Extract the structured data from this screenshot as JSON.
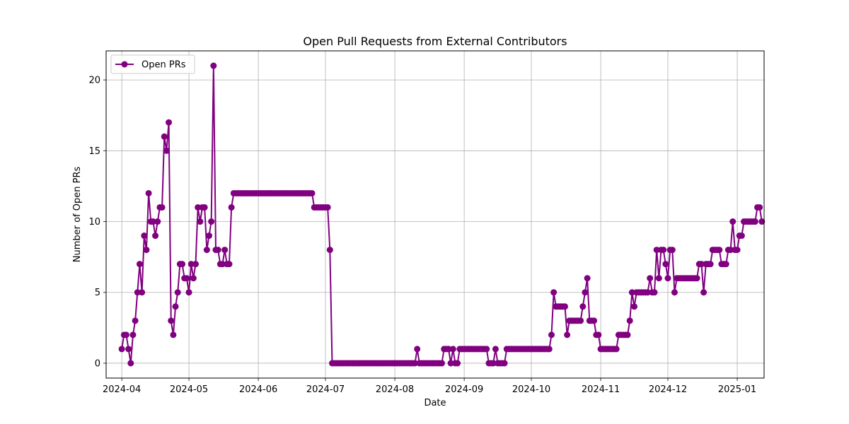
{
  "chart_data": {
    "type": "line",
    "title": "Open Pull Requests from External Contributors",
    "xlabel": "Date",
    "ylabel": "Number of Open PRs",
    "xlim": [
      "2024-03-25",
      "2025-01-13"
    ],
    "ylim": [
      -1.05,
      22.05
    ],
    "x_ticks": [
      "2024-04",
      "2024-05",
      "2024-06",
      "2024-07",
      "2024-08",
      "2024-09",
      "2024-10",
      "2024-11",
      "2024-12",
      "2025-01"
    ],
    "y_ticks": [
      0,
      5,
      10,
      15,
      20
    ],
    "grid": true,
    "legend_placement": "upper-left",
    "color": "#800080",
    "series": [
      {
        "name": "Open PRs",
        "start_date": "2024-04-01",
        "values": [
          1,
          2,
          2,
          1,
          0,
          2,
          3,
          5,
          7,
          5,
          9,
          8,
          12,
          10,
          10,
          9,
          10,
          11,
          11,
          16,
          15,
          17,
          3,
          2,
          4,
          5,
          7,
          7,
          6,
          6,
          5,
          7,
          6,
          7,
          11,
          10,
          11,
          11,
          8,
          9,
          10,
          21,
          8,
          8,
          7,
          7,
          8,
          7,
          7,
          11,
          12,
          12,
          12,
          12,
          12,
          12,
          12,
          12,
          12,
          12,
          12,
          12,
          12,
          12,
          12,
          12,
          12,
          12,
          12,
          12,
          12,
          12,
          12,
          12,
          12,
          12,
          12,
          12,
          12,
          12,
          12,
          12,
          12,
          12,
          12,
          12,
          11,
          11,
          11,
          11,
          11,
          11,
          11,
          8,
          0,
          0,
          0,
          0,
          0,
          0,
          0,
          0,
          0,
          0,
          0,
          0,
          0,
          0,
          0,
          0,
          0,
          0,
          0,
          0,
          0,
          0,
          0,
          0,
          0,
          0,
          0,
          0,
          0,
          0,
          0,
          0,
          0,
          0,
          0,
          0,
          0,
          0,
          1,
          0,
          0,
          0,
          0,
          0,
          0,
          0,
          0,
          0,
          0,
          0,
          1,
          1,
          1,
          0,
          1,
          0,
          0,
          1,
          1,
          1,
          1,
          1,
          1,
          1,
          1,
          1,
          1,
          1,
          1,
          1,
          0,
          0,
          0,
          1,
          0,
          0,
          0,
          0,
          1,
          1,
          1,
          1,
          1,
          1,
          1,
          1,
          1,
          1,
          1,
          1,
          1,
          1,
          1,
          1,
          1,
          1,
          1,
          1,
          2,
          5,
          4,
          4,
          4,
          4,
          4,
          2,
          3,
          3,
          3,
          3,
          3,
          3,
          4,
          5,
          6,
          3,
          3,
          3,
          2,
          2,
          1,
          1,
          1,
          1,
          1,
          1,
          1,
          1,
          2,
          2,
          2,
          2,
          2,
          3,
          5,
          4,
          5,
          5,
          5,
          5,
          5,
          5,
          6,
          5,
          5,
          8,
          6,
          8,
          8,
          7,
          6,
          8,
          8,
          5,
          6,
          6,
          6,
          6,
          6,
          6,
          6,
          6,
          6,
          6,
          7,
          7,
          5,
          7,
          7,
          7,
          8,
          8,
          8,
          8,
          7,
          7,
          7,
          8,
          8,
          10,
          8,
          8,
          9,
          9,
          10,
          10,
          10,
          10,
          10,
          10,
          11,
          11,
          10
        ]
      }
    ]
  }
}
